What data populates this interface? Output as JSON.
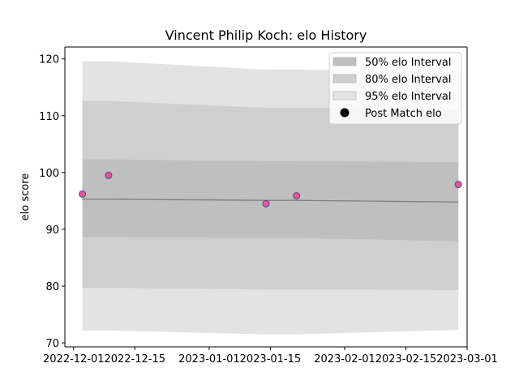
{
  "chart_data": {
    "type": "area",
    "title": "Vincent Philip Koch: elo History",
    "xlabel": "",
    "ylabel": "elo score",
    "x_ticks": [
      "2022-12-01",
      "2022-12-15",
      "2023-01-01",
      "2023-01-15",
      "2023-02-01",
      "2023-02-15",
      "2023-03-01"
    ],
    "y_ticks": [
      70,
      80,
      90,
      100,
      110,
      120
    ],
    "xlim": [
      "2022-11-29",
      "2023-03-01"
    ],
    "ylim": [
      69.3,
      122.1
    ],
    "grid": false,
    "legend_position": "top-right",
    "dates": [
      "2022-12-03",
      "2022-12-09",
      "2023-01-14",
      "2023-01-21",
      "2023-02-27"
    ],
    "series": [
      {
        "name": "95% elo Interval",
        "kind": "band",
        "color": "#e3e3e3",
        "lower": [
          72.2,
          72.2,
          71.5,
          71.5,
          72.3
        ],
        "upper": [
          119.6,
          119.6,
          118.1,
          118.1,
          117.9
        ]
      },
      {
        "name": "80% elo Interval",
        "kind": "band",
        "color": "#cfcfcf",
        "lower": [
          79.7,
          79.7,
          79.4,
          79.4,
          79.3
        ],
        "upper": [
          112.6,
          112.6,
          111.4,
          111.4,
          111.1
        ]
      },
      {
        "name": "50% elo Interval",
        "kind": "band",
        "color": "#bfbfbf",
        "lower": [
          88.6,
          88.6,
          88.5,
          88.5,
          87.9
        ],
        "upper": [
          102.3,
          102.3,
          102.0,
          102.0,
          101.8
        ]
      },
      {
        "name": "mean",
        "kind": "line",
        "color": "#808080",
        "values": [
          95.3,
          95.3,
          95.1,
          95.1,
          94.8
        ]
      },
      {
        "name": "Post Match elo",
        "kind": "scatter",
        "color": "#e8559b",
        "values": [
          96.2,
          99.5,
          94.5,
          95.9,
          97.9
        ]
      }
    ]
  }
}
